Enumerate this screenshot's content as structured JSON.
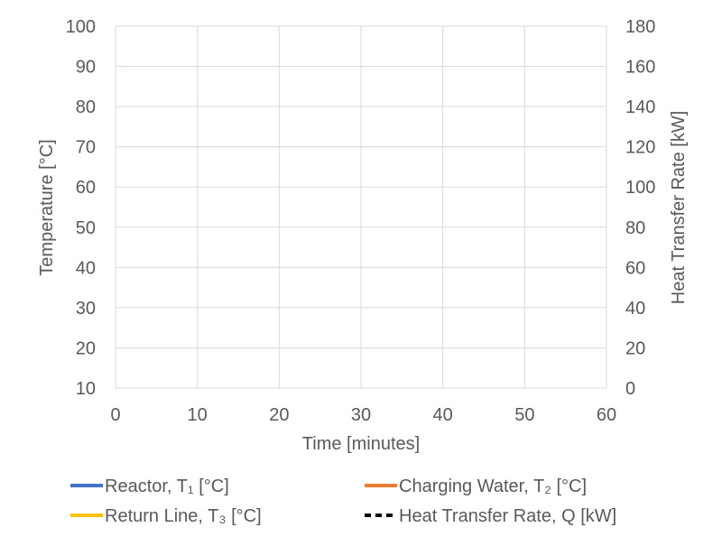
{
  "chart_data": {
    "type": "line",
    "title": "",
    "xlabel": "Time [minutes]",
    "ylabel": "Temperature [°C]",
    "y2label": "Heat Transfer Rate [kW]",
    "xlim": [
      0,
      60
    ],
    "ylim": [
      10,
      100
    ],
    "y2lim": [
      0,
      180
    ],
    "xticks": [
      "0",
      "10",
      "20",
      "30",
      "40",
      "50",
      "60"
    ],
    "yticks": [
      "10",
      "20",
      "30",
      "40",
      "50",
      "60",
      "70",
      "80",
      "90",
      "100"
    ],
    "y2ticks": [
      "0",
      "20",
      "40",
      "60",
      "80",
      "100",
      "120",
      "140",
      "160",
      "180"
    ],
    "grid": true,
    "legend_position": "bottom",
    "series": [
      {
        "name": "Reactor, T₁ [°C]",
        "color": "#4472C4",
        "dash": "solid",
        "axis": "left",
        "x": [],
        "values": []
      },
      {
        "name": "Charging Water, T₂ [°C]",
        "color": "#ED7D31",
        "dash": "solid",
        "axis": "left",
        "x": [],
        "values": []
      },
      {
        "name": "Return Line, T₃ [°C]",
        "color": "#FFC000",
        "dash": "solid",
        "axis": "left",
        "x": [],
        "values": []
      },
      {
        "name": "Heat Transfer Rate, Q [kW]",
        "color": "#000000",
        "dash": "dashed",
        "axis": "right",
        "x": [],
        "values": []
      }
    ]
  }
}
